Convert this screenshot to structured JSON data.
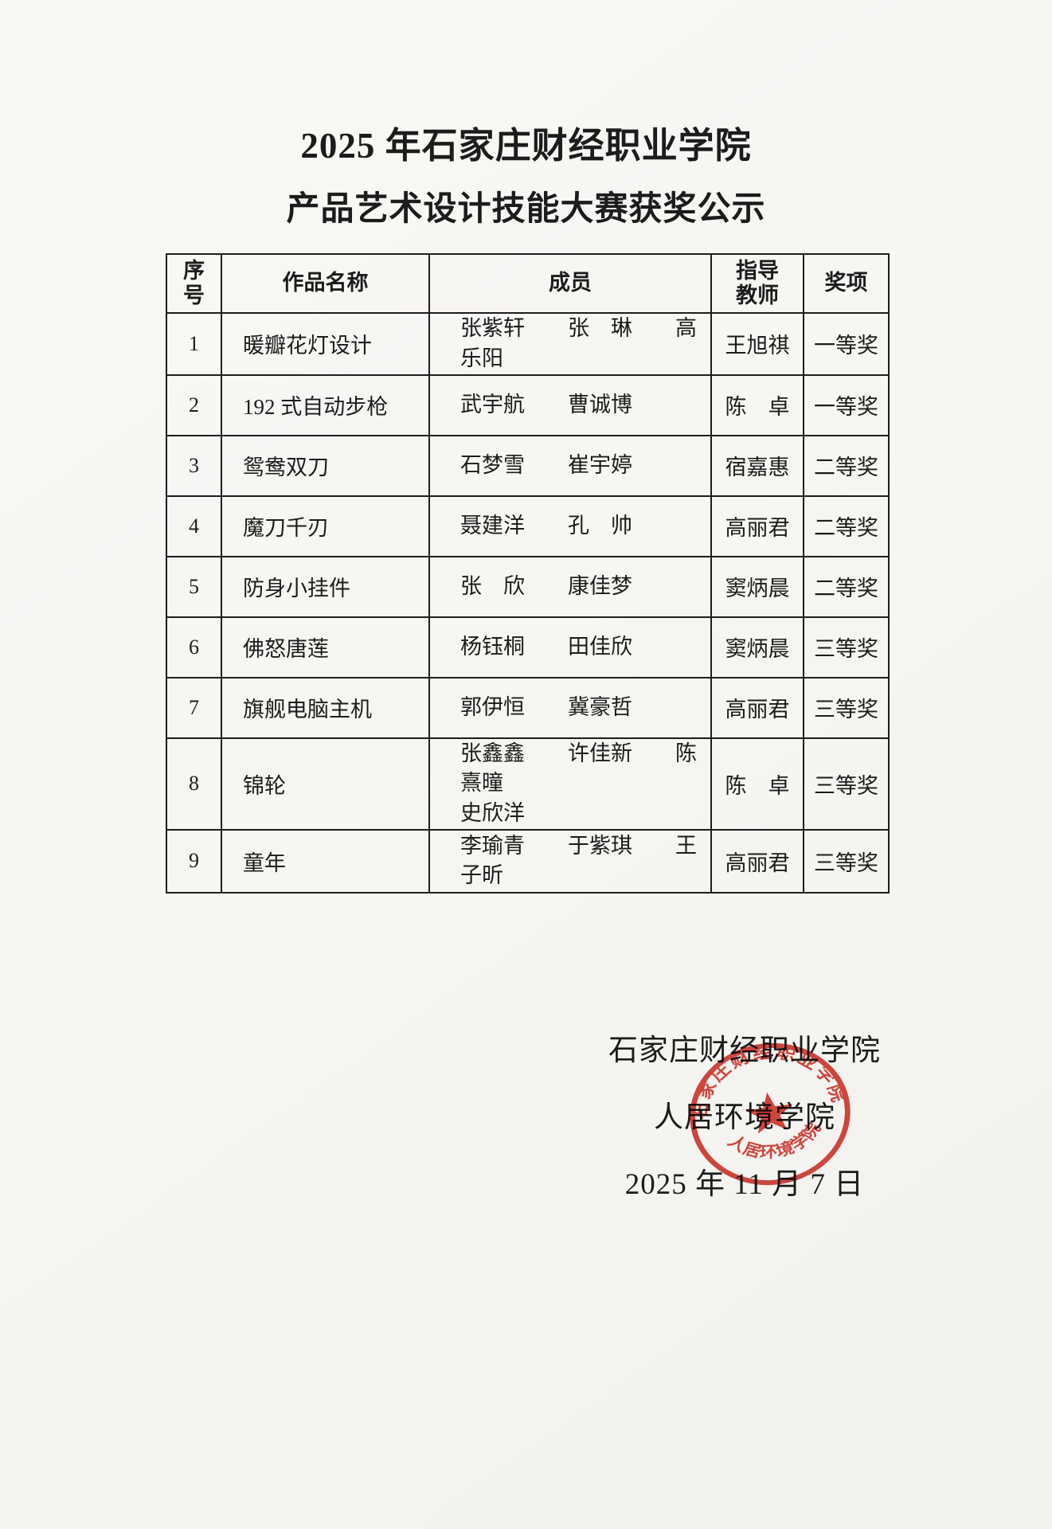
{
  "page": {
    "background_color": "#f7f6f3",
    "text_color": "#1c1c1c"
  },
  "title": {
    "line1": "2025 年石家庄财经职业学院",
    "line2": "产品艺术设计技能大赛获奖公示"
  },
  "table": {
    "border_color": "#1d1d1d",
    "headers": {
      "index": "序\n号",
      "work": "作品名称",
      "members": "成员",
      "advisor": "指导\n教师",
      "award": "奖项"
    },
    "rows": [
      {
        "index": "1",
        "work": "暖瓣花灯设计",
        "members": "张紫轩　　张　琳　　高乐阳",
        "advisor": "王旭祺",
        "award": "一等奖"
      },
      {
        "index": "2",
        "work": "192 式自动步枪",
        "members": "武宇航　　曹诚博",
        "advisor": "陈　卓",
        "award": "一等奖"
      },
      {
        "index": "3",
        "work": "鸳鸯双刀",
        "members": "石梦雪　　崔宇婷",
        "advisor": "宿嘉惠",
        "award": "二等奖"
      },
      {
        "index": "4",
        "work": "魔刀千刃",
        "members": "聂建洋　　孔　帅",
        "advisor": "高丽君",
        "award": "二等奖"
      },
      {
        "index": "5",
        "work": "防身小挂件",
        "members": "张　欣　　康佳梦",
        "advisor": "窦炳晨",
        "award": "二等奖"
      },
      {
        "index": "6",
        "work": "佛怒唐莲",
        "members": "杨钰桐　　田佳欣",
        "advisor": "窦炳晨",
        "award": "三等奖"
      },
      {
        "index": "7",
        "work": "旗舰电脑主机",
        "members": "郭伊恒　　冀豪哲",
        "advisor": "高丽君",
        "award": "三等奖"
      },
      {
        "index": "8",
        "work": "锦轮",
        "members": "张鑫鑫　　许佳新　　陈熹曈\n史欣洋",
        "advisor": "陈　卓",
        "award": "三等奖"
      },
      {
        "index": "9",
        "work": "童年",
        "members": "李瑜青　　于紫琪　　王子昕",
        "advisor": "高丽君",
        "award": "三等奖"
      }
    ]
  },
  "footer": {
    "org_line1": "石家庄财经职业学院",
    "org_line2": "人居环境学院",
    "date": "2025 年 11 月 7 日"
  },
  "stamp": {
    "shape": "circular-seal-with-star",
    "ring_text": "石家庄财经职业学院",
    "inner_text": "人居环境学院",
    "color": "#d0281e"
  }
}
